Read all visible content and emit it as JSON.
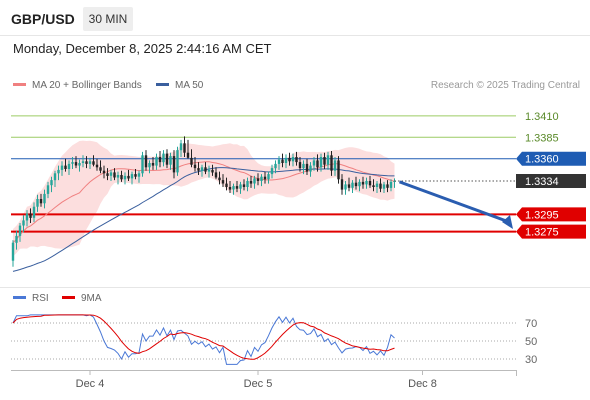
{
  "header": {
    "pair": "GBP/USD",
    "timeframe": "30 MIN",
    "datetime": "Monday, December 8, 2025 2:44:16 AM CET"
  },
  "legend": {
    "ma20_label": "MA 20 + Bollinger Bands",
    "ma50_label": "MA 50",
    "credit": "Research © 2025 Trading Central"
  },
  "rsi_legend": {
    "rsi_label": "RSI",
    "ma9_label": "9MA"
  },
  "colors": {
    "up": "#26a69a",
    "down": "#222222",
    "ma20": "#f08080",
    "band": "#fbd3d3",
    "ma50": "#3a5f9e",
    "resistance": "#9ccc65",
    "pivot": "#1e5cb3",
    "support": "#e00000",
    "rsi": "#4a78d6",
    "rsi_ma": "#e00000",
    "arrow": "#2a5db0"
  },
  "chart_data": [
    {
      "type": "candlestick",
      "y_range": [
        1.3215,
        1.3432
      ],
      "x_ticks": [
        {
          "label": "Dec 4",
          "index": 22
        },
        {
          "label": "Dec 5",
          "index": 70
        },
        {
          "label": "Dec 8",
          "index": 117
        }
      ],
      "last_price": {
        "value": 1.3334,
        "label": "1.3334"
      },
      "levels": [
        {
          "name": "resistance-2",
          "value": 1.341,
          "label": "1.3410",
          "kind": "resistance"
        },
        {
          "name": "resistance-1",
          "value": 1.3385,
          "label": "1.3385",
          "kind": "resistance"
        },
        {
          "name": "pivot",
          "value": 1.336,
          "label": "1.3360",
          "kind": "pivot"
        },
        {
          "name": "support-1",
          "value": 1.3295,
          "label": "1.3295",
          "kind": "support"
        },
        {
          "name": "support-2",
          "value": 1.3275,
          "label": "1.3275",
          "kind": "support"
        }
      ],
      "forecast_arrow": {
        "from": 1.3333,
        "to": 1.3278
      },
      "candles": [
        [
          1.3241,
          1.3265,
          1.3234,
          1.3262
        ],
        [
          1.3262,
          1.3276,
          1.3254,
          1.327
        ],
        [
          1.327,
          1.3285,
          1.3263,
          1.3282
        ],
        [
          1.3282,
          1.3294,
          1.3274,
          1.3288
        ],
        [
          1.3288,
          1.33,
          1.3281,
          1.3296
        ],
        [
          1.3296,
          1.3302,
          1.3285,
          1.3291
        ],
        [
          1.3291,
          1.3309,
          1.3286,
          1.3304
        ],
        [
          1.3304,
          1.3318,
          1.3298,
          1.3313
        ],
        [
          1.3313,
          1.3319,
          1.3304,
          1.3308
        ],
        [
          1.3308,
          1.3324,
          1.3302,
          1.3319
        ],
        [
          1.3319,
          1.3333,
          1.3314,
          1.3329
        ],
        [
          1.3329,
          1.3339,
          1.3321,
          1.3335
        ],
        [
          1.3335,
          1.3346,
          1.3327,
          1.3343
        ],
        [
          1.3343,
          1.3352,
          1.3335,
          1.3347
        ],
        [
          1.3347,
          1.3357,
          1.334,
          1.3352
        ],
        [
          1.3352,
          1.336,
          1.3345,
          1.3348
        ],
        [
          1.3348,
          1.3358,
          1.3341,
          1.3354
        ],
        [
          1.3354,
          1.3362,
          1.3348,
          1.3356
        ],
        [
          1.3356,
          1.3363,
          1.3349,
          1.3352
        ],
        [
          1.3352,
          1.3359,
          1.3345,
          1.3355
        ],
        [
          1.3355,
          1.3364,
          1.335,
          1.3357
        ],
        [
          1.3357,
          1.3363,
          1.3349,
          1.3354
        ],
        [
          1.3354,
          1.3361,
          1.3348,
          1.3357
        ],
        [
          1.3357,
          1.3364,
          1.3351,
          1.3353
        ],
        [
          1.3353,
          1.336,
          1.3346,
          1.335
        ],
        [
          1.335,
          1.3358,
          1.3343,
          1.3346
        ],
        [
          1.3346,
          1.3352,
          1.3337,
          1.3343
        ],
        [
          1.3343,
          1.3349,
          1.3335,
          1.334
        ],
        [
          1.334,
          1.3347,
          1.3334,
          1.3344
        ],
        [
          1.3344,
          1.3349,
          1.3335,
          1.3338
        ],
        [
          1.3338,
          1.3345,
          1.333,
          1.3341
        ],
        [
          1.3341,
          1.3346,
          1.3333,
          1.3336
        ],
        [
          1.3336,
          1.3344,
          1.333,
          1.334
        ],
        [
          1.334,
          1.3347,
          1.3334,
          1.3337
        ],
        [
          1.3337,
          1.3345,
          1.333,
          1.3342
        ],
        [
          1.3342,
          1.3348,
          1.3336,
          1.3339
        ],
        [
          1.3339,
          1.3346,
          1.3332,
          1.3343
        ],
        [
          1.3343,
          1.3368,
          1.3339,
          1.3364
        ],
        [
          1.3364,
          1.337,
          1.3346,
          1.335
        ],
        [
          1.335,
          1.3358,
          1.3343,
          1.3355
        ],
        [
          1.3355,
          1.3362,
          1.3347,
          1.3352
        ],
        [
          1.3352,
          1.3366,
          1.3347,
          1.3362
        ],
        [
          1.3362,
          1.3369,
          1.335,
          1.3356
        ],
        [
          1.3356,
          1.337,
          1.3351,
          1.3366
        ],
        [
          1.3366,
          1.3371,
          1.3349,
          1.3353
        ],
        [
          1.3353,
          1.3367,
          1.3347,
          1.3363
        ],
        [
          1.3363,
          1.337,
          1.3337,
          1.3344
        ],
        [
          1.3344,
          1.3374,
          1.334,
          1.337
        ],
        [
          1.337,
          1.3382,
          1.3362,
          1.3378
        ],
        [
          1.3378,
          1.3386,
          1.3362,
          1.3367
        ],
        [
          1.3367,
          1.3382,
          1.336,
          1.3361
        ],
        [
          1.3361,
          1.3371,
          1.335,
          1.3353
        ],
        [
          1.3353,
          1.3362,
          1.3345,
          1.3349
        ],
        [
          1.3349,
          1.3356,
          1.3341,
          1.3346
        ],
        [
          1.3346,
          1.3353,
          1.3339,
          1.335
        ],
        [
          1.335,
          1.3356,
          1.3342,
          1.3345
        ],
        [
          1.3345,
          1.3352,
          1.3338,
          1.3347
        ],
        [
          1.3347,
          1.3353,
          1.334,
          1.3344
        ],
        [
          1.3344,
          1.335,
          1.3336,
          1.3338
        ],
        [
          1.3338,
          1.3345,
          1.333,
          1.3335
        ],
        [
          1.3335,
          1.3342,
          1.3327,
          1.3331
        ],
        [
          1.3331,
          1.3338,
          1.3323,
          1.3327
        ],
        [
          1.3327,
          1.3334,
          1.332,
          1.3324
        ],
        [
          1.3324,
          1.3331,
          1.3318,
          1.3328
        ],
        [
          1.3328,
          1.3334,
          1.3321,
          1.3325
        ],
        [
          1.3325,
          1.3333,
          1.3319,
          1.333
        ],
        [
          1.333,
          1.3336,
          1.3323,
          1.3327
        ],
        [
          1.3327,
          1.3338,
          1.3322,
          1.3334
        ],
        [
          1.3334,
          1.334,
          1.3326,
          1.3331
        ],
        [
          1.3331,
          1.334,
          1.3325,
          1.3337
        ],
        [
          1.3337,
          1.3343,
          1.3329,
          1.3334
        ],
        [
          1.3334,
          1.3342,
          1.3328,
          1.3339
        ],
        [
          1.3339,
          1.3345,
          1.3331,
          1.3336
        ],
        [
          1.3336,
          1.3345,
          1.3331,
          1.3342
        ],
        [
          1.3342,
          1.3353,
          1.3337,
          1.3349
        ],
        [
          1.3349,
          1.3358,
          1.3343,
          1.3354
        ],
        [
          1.3354,
          1.3363,
          1.3347,
          1.3359
        ],
        [
          1.3359,
          1.3366,
          1.335,
          1.3355
        ],
        [
          1.3355,
          1.3365,
          1.3349,
          1.3361
        ],
        [
          1.3361,
          1.3367,
          1.3352,
          1.3357
        ],
        [
          1.3357,
          1.3366,
          1.3351,
          1.3362
        ],
        [
          1.3362,
          1.3368,
          1.3352,
          1.3356
        ],
        [
          1.3356,
          1.3362,
          1.3345,
          1.3349
        ],
        [
          1.3349,
          1.3358,
          1.3342,
          1.3354
        ],
        [
          1.3354,
          1.336,
          1.3341,
          1.3345
        ],
        [
          1.3345,
          1.3356,
          1.3339,
          1.3352
        ],
        [
          1.3352,
          1.3362,
          1.3346,
          1.3358
        ],
        [
          1.3358,
          1.3365,
          1.3345,
          1.335
        ],
        [
          1.335,
          1.3366,
          1.3345,
          1.3362
        ],
        [
          1.3362,
          1.3367,
          1.3348,
          1.3353
        ],
        [
          1.3353,
          1.3368,
          1.3347,
          1.3364
        ],
        [
          1.3364,
          1.3369,
          1.334,
          1.3346
        ],
        [
          1.3346,
          1.3362,
          1.334,
          1.3358
        ],
        [
          1.3358,
          1.3363,
          1.3331,
          1.3336
        ],
        [
          1.3336,
          1.3342,
          1.3318,
          1.3324
        ],
        [
          1.3324,
          1.3334,
          1.3318,
          1.333
        ],
        [
          1.333,
          1.3338,
          1.3322,
          1.3326
        ],
        [
          1.3326,
          1.3335,
          1.332,
          1.3332
        ],
        [
          1.3332,
          1.3339,
          1.3324,
          1.3328
        ],
        [
          1.3328,
          1.3336,
          1.3322,
          1.3333
        ],
        [
          1.3333,
          1.3339,
          1.3325,
          1.333
        ],
        [
          1.333,
          1.3338,
          1.3325,
          1.3334
        ],
        [
          1.3334,
          1.334,
          1.3326,
          1.3329
        ],
        [
          1.3329,
          1.3336,
          1.3322,
          1.3327
        ],
        [
          1.3327,
          1.3334,
          1.332,
          1.3331
        ],
        [
          1.3331,
          1.3337,
          1.3321,
          1.3325
        ],
        [
          1.3325,
          1.3333,
          1.332,
          1.333
        ],
        [
          1.333,
          1.3335,
          1.3321,
          1.3326
        ],
        [
          1.3326,
          1.3336,
          1.3322,
          1.3333
        ],
        [
          1.3333,
          1.3337,
          1.3326,
          1.3334
        ]
      ]
    },
    {
      "type": "line",
      "series": [
        {
          "name": "RSI"
        },
        {
          "name": "9MA"
        }
      ],
      "y_range": [
        20,
        80
      ],
      "y_ticks": [
        {
          "value": 70,
          "label": "70"
        },
        {
          "value": 50,
          "label": "50"
        },
        {
          "value": 30,
          "label": "30"
        }
      ]
    }
  ]
}
